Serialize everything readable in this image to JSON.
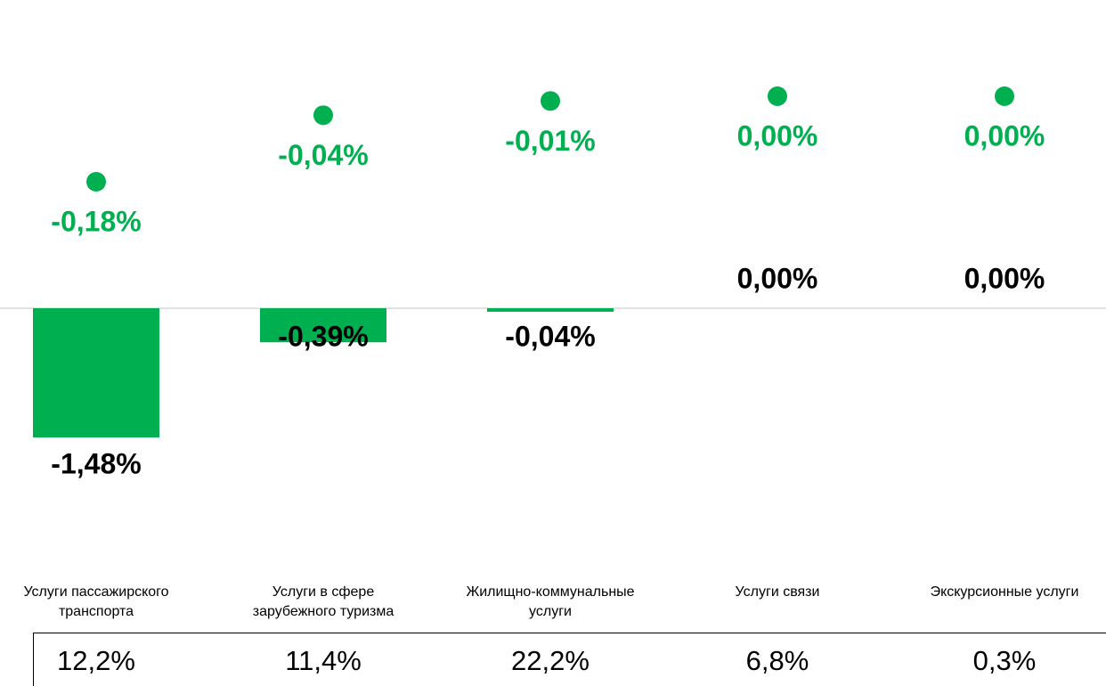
{
  "chart_data": {
    "type": "bar",
    "categories": [
      "Услуги пассажирского транспорта",
      "Услуги в сфере зарубежного туризма",
      "Жилищно-коммунальные услуги",
      "Услуги связи",
      "Экскурсионные услуги"
    ],
    "series": [
      {
        "name": null,
        "type": "bar",
        "color": "#00b050",
        "values": [
          -1.48,
          -0.39,
          -0.04,
          0,
          0
        ],
        "value_labels": [
          "-1,48%",
          "-0,39%",
          "-0,04%",
          "0,00%",
          "0,00%"
        ]
      },
      {
        "name": null,
        "type": "scatter",
        "color": "#00b050",
        "values": [
          -0.18,
          -0.04,
          -0.01,
          0,
          0
        ],
        "value_labels": [
          "-0,18%",
          "-0,04%",
          "-0,01%",
          "0,00%",
          "0,00%"
        ]
      }
    ],
    "weights": {
      "values": [
        12.2,
        11.4,
        22.2,
        6.8,
        0.3
      ],
      "value_labels": [
        "12,2%",
        "11,4%",
        "22,2%",
        "6,8%",
        "0,3%"
      ]
    }
  }
}
